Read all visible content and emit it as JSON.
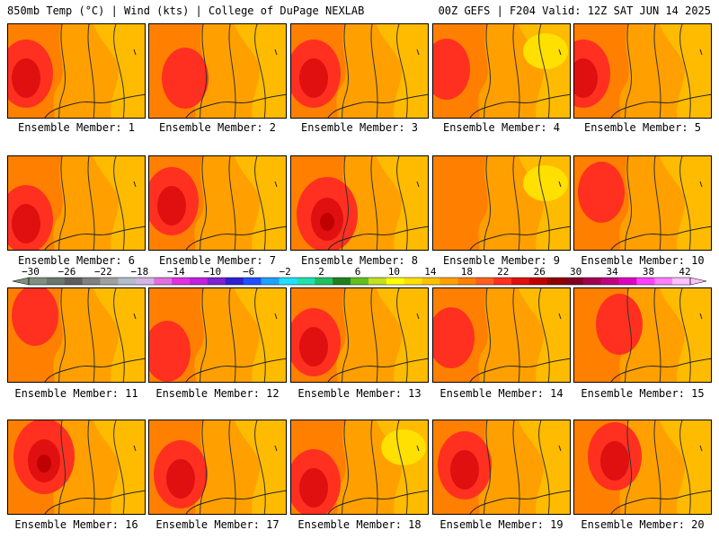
{
  "header": {
    "left": "850mb Temp (°C) | Wind (kts) | College of DuPage NEXLAB",
    "right": "00Z GEFS | F204 Valid: 12Z SAT JUN 14 2025"
  },
  "colorbar": {
    "tick_labels": [
      "−30",
      "−26",
      "−22",
      "−18",
      "−14",
      "−10",
      "−6",
      "−2",
      "2",
      "6",
      "10",
      "14",
      "18",
      "22",
      "26",
      "30",
      "34",
      "38",
      "42"
    ],
    "colors": [
      "#7f8f7f",
      "#6c766c",
      "#5e5e5e",
      "#808080",
      "#a0a0a0",
      "#b4bccc",
      "#d4b4e4",
      "#e070e0",
      "#e030e0",
      "#c020e0",
      "#8020d0",
      "#3020d0",
      "#2050ff",
      "#20a0ff",
      "#20e0ff",
      "#20e0b0",
      "#20c060",
      "#208020",
      "#60c020",
      "#c0e020",
      "#ffff00",
      "#ffe000",
      "#ffc000",
      "#ffa000",
      "#ff8000",
      "#ff6020",
      "#ff3020",
      "#e01010",
      "#c00000",
      "#900000",
      "#800020",
      "#a00050",
      "#c00080",
      "#e000c0",
      "#ff40ff",
      "#ff80ff",
      "#ffc0ff"
    ]
  },
  "panels": [
    {
      "label": "Ensemble Member: 1"
    },
    {
      "label": "Ensemble Member: 2"
    },
    {
      "label": "Ensemble Member: 3"
    },
    {
      "label": "Ensemble Member: 4"
    },
    {
      "label": "Ensemble Member: 5"
    },
    {
      "label": "Ensemble Member: 6"
    },
    {
      "label": "Ensemble Member: 7"
    },
    {
      "label": "Ensemble Member: 8"
    },
    {
      "label": "Ensemble Member: 9"
    },
    {
      "label": "Ensemble Member: 10"
    },
    {
      "label": "Ensemble Member: 11"
    },
    {
      "label": "Ensemble Member: 12"
    },
    {
      "label": "Ensemble Member: 13"
    },
    {
      "label": "Ensemble Member: 14"
    },
    {
      "label": "Ensemble Member: 15"
    },
    {
      "label": "Ensemble Member: 16"
    },
    {
      "label": "Ensemble Member: 17"
    },
    {
      "label": "Ensemble Member: 18"
    },
    {
      "label": "Ensemble Member: 19"
    },
    {
      "label": "Ensemble Member: 20"
    }
  ],
  "fill_colors": {
    "base": "#ffa000",
    "warm": "#ff8000",
    "hot": "#ff3020",
    "very_hot": "#e01010",
    "extreme": "#c00000",
    "cool": "#ffc000",
    "cooler": "#ffe000"
  }
}
